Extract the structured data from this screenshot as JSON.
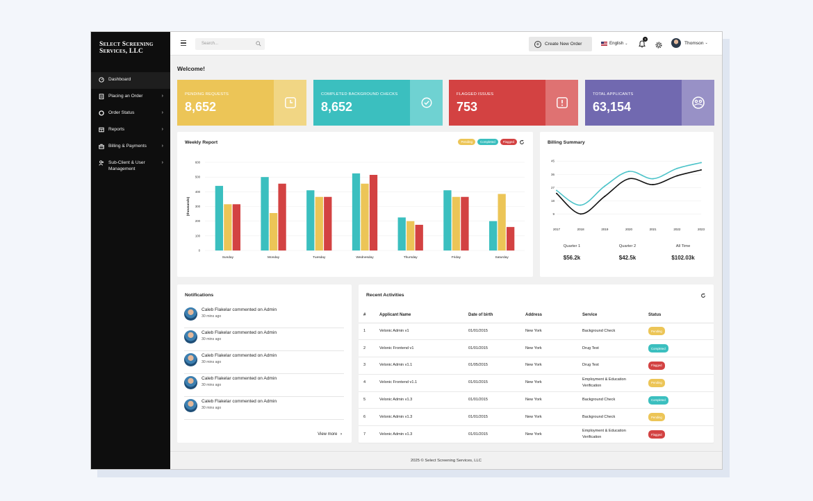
{
  "brand": {
    "line1": "Select Screening",
    "line2": "Services, LLC"
  },
  "sidebar": {
    "items": [
      {
        "label": "Dashboard",
        "icon": "dashboard-icon",
        "has_submenu": false,
        "active": true
      },
      {
        "label": "Placing an Order",
        "icon": "clipboard-icon",
        "has_submenu": true
      },
      {
        "label": "Order Status",
        "icon": "circle-icon",
        "has_submenu": true
      },
      {
        "label": "Reports",
        "icon": "report-icon",
        "has_submenu": true
      },
      {
        "label": "Billing & Payments",
        "icon": "billing-icon",
        "has_submenu": true
      },
      {
        "label": "Sub-Client & User Management",
        "icon": "users-icon",
        "has_submenu": true
      }
    ]
  },
  "topbar": {
    "search_placeholder": "Search...",
    "create_label": "Create New Order",
    "language": "English",
    "notification_count": "3",
    "user_name": "Thomson"
  },
  "welcome": "Welcome!",
  "stats": [
    {
      "label": "Pending Requests",
      "value": "8,652",
      "color": "#ecc557",
      "side": "#f1d684",
      "icon": "clock-icon"
    },
    {
      "label": "Completed Background Checks",
      "value": "8,652",
      "color": "#3bbfbf",
      "side": "#6fd2d2",
      "icon": "check-circle-icon"
    },
    {
      "label": "Flagged Issues",
      "value": "753",
      "color": "#d34242",
      "side": "#df7272",
      "icon": "alert-icon"
    },
    {
      "label": "Total Applicants",
      "value": "63,154",
      "color": "#7169b0",
      "side": "#9891c6",
      "icon": "group-icon"
    }
  ],
  "weekly": {
    "title": "Weekly Report",
    "legend": [
      "Pending",
      "Completed",
      "Flagged"
    ],
    "chart_data": {
      "type": "bar",
      "ylabel": "(thousands)",
      "ylim": [
        0,
        600
      ],
      "yticks": [
        0,
        100,
        200,
        300,
        400,
        500,
        600
      ],
      "categories": [
        "Sunday",
        "Monday",
        "Tuesday",
        "Wednesday",
        "Thursday",
        "Friday",
        "Saturday"
      ],
      "series": [
        {
          "color": "#3bbfbf",
          "values": [
            440,
            500,
            410,
            525,
            225,
            410,
            200
          ]
        },
        {
          "color": "#ecc557",
          "values": [
            315,
            255,
            365,
            455,
            200,
            365,
            385
          ]
        },
        {
          "color": "#d34242",
          "values": [
            315,
            455,
            365,
            515,
            175,
            365,
            160
          ]
        }
      ]
    }
  },
  "billing": {
    "title": "Billing Summary",
    "chart_data": {
      "type": "line",
      "x": [
        2017,
        2018,
        2019,
        2020,
        2021,
        2022,
        2023
      ],
      "yticks": [
        9,
        18,
        27,
        36,
        45
      ],
      "series": [
        {
          "color": "#4cc3c9",
          "values": [
            25,
            15,
            28,
            38,
            33,
            40,
            44
          ]
        },
        {
          "color": "#111111",
          "values": [
            23,
            9,
            21,
            33,
            29,
            35,
            39
          ]
        }
      ]
    },
    "summary": [
      {
        "label": "Quarter 1",
        "value": "$56.2k"
      },
      {
        "label": "Quarter 2",
        "value": "$42.5k"
      },
      {
        "label": "All Time",
        "value": "$102.03k"
      }
    ]
  },
  "notifications": {
    "title": "Notifications",
    "items": [
      {
        "text": "Caleb Flakelar commented on Admin",
        "time": "30 mins ago"
      },
      {
        "text": "Caleb Flakelar commented on Admin",
        "time": "30 mins ago"
      },
      {
        "text": "Caleb Flakelar commented on Admin",
        "time": "30 mins ago"
      },
      {
        "text": "Caleb Flakelar commented on Admin",
        "time": "30 mins ago"
      },
      {
        "text": "Caleb Flakelar commented on Admin",
        "time": "30 mins ago"
      }
    ],
    "view_more": "View more"
  },
  "activities": {
    "title": "Recent Activities",
    "columns": [
      "#",
      "Applicant Name",
      "Date of birth",
      "Address",
      "Service",
      "Status"
    ],
    "rows": [
      {
        "n": "1",
        "name": "Velonic Admin v1",
        "dob": "01/01/2015",
        "address": "New York",
        "service": "Background Check",
        "status": "Pending"
      },
      {
        "n": "2",
        "name": "Velonic Frontend v1",
        "dob": "01/01/2015",
        "address": "New York",
        "service": "Drug Test",
        "status": "Completed"
      },
      {
        "n": "3",
        "name": "Velonic Admin v1.1",
        "dob": "01/05/2015",
        "address": "New York",
        "service": "Drug Test",
        "status": "Flagged"
      },
      {
        "n": "4",
        "name": "Velonic Frontend v1.1",
        "dob": "01/01/2015",
        "address": "New York",
        "service": "Employment & Education Verification",
        "status": "Pending"
      },
      {
        "n": "5",
        "name": "Velonic Admin v1.3",
        "dob": "01/01/2015",
        "address": "New York",
        "service": "Background Check",
        "status": "Completed"
      },
      {
        "n": "6",
        "name": "Velonic Admin v1.3",
        "dob": "01/01/2015",
        "address": "New York",
        "service": "Background Check",
        "status": "Pending"
      },
      {
        "n": "7",
        "name": "Velonic Admin v1.3",
        "dob": "01/01/2015",
        "address": "New York",
        "service": "Employment & Education Verification",
        "status": "Flagged"
      }
    ],
    "status_colors": {
      "Pending": "#ecc557",
      "Completed": "#3bbfbf",
      "Flagged": "#d34242"
    }
  },
  "footer": "2025 © Select Screening Services, LLC"
}
